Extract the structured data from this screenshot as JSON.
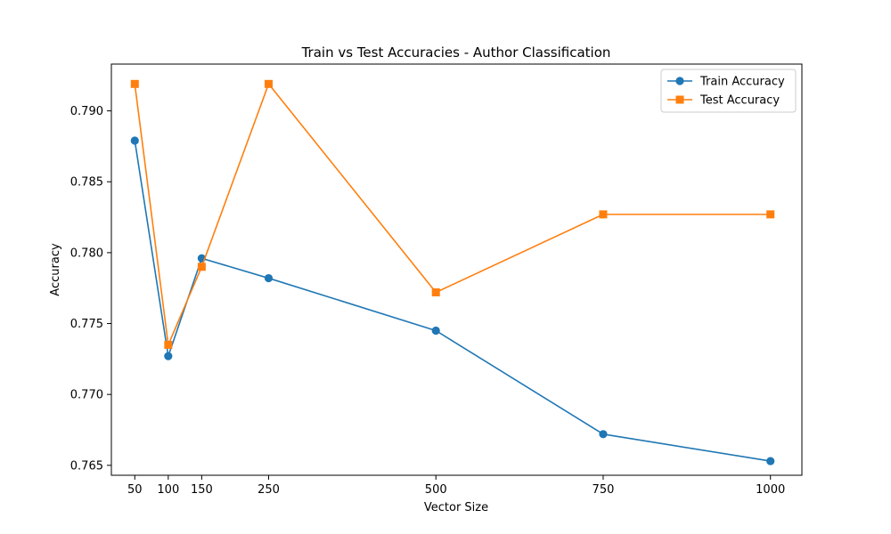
{
  "chart_data": {
    "type": "line",
    "title": "Train vs Test Accuracies - Author Classification",
    "xlabel": "Vector Size",
    "ylabel": "Accuracy",
    "x": [
      50,
      100,
      150,
      250,
      500,
      750,
      1000
    ],
    "xticks": [
      "50",
      "100",
      "150",
      "250",
      "500",
      "750",
      "1000"
    ],
    "yticks": [
      "0.765",
      "0.770",
      "0.775",
      "0.780",
      "0.785",
      "0.790"
    ],
    "ytick_values": [
      0.765,
      0.77,
      0.775,
      0.78,
      0.785,
      0.79
    ],
    "xlim": [
      15,
      1047
    ],
    "ylim": [
      0.7643,
      0.7933
    ],
    "grid": false,
    "legend_position": "top-right",
    "series": [
      {
        "name": "Train Accuracy",
        "color": "#1f77b4",
        "marker": "circle",
        "values": [
          0.7879,
          0.7727,
          0.7796,
          0.7782,
          0.7745,
          0.7672,
          0.7653
        ]
      },
      {
        "name": "Test Accuracy",
        "color": "#ff7f0e",
        "marker": "square",
        "values": [
          0.7919,
          0.7735,
          0.779,
          0.7919,
          0.7772,
          0.7827,
          0.7827
        ]
      }
    ]
  }
}
